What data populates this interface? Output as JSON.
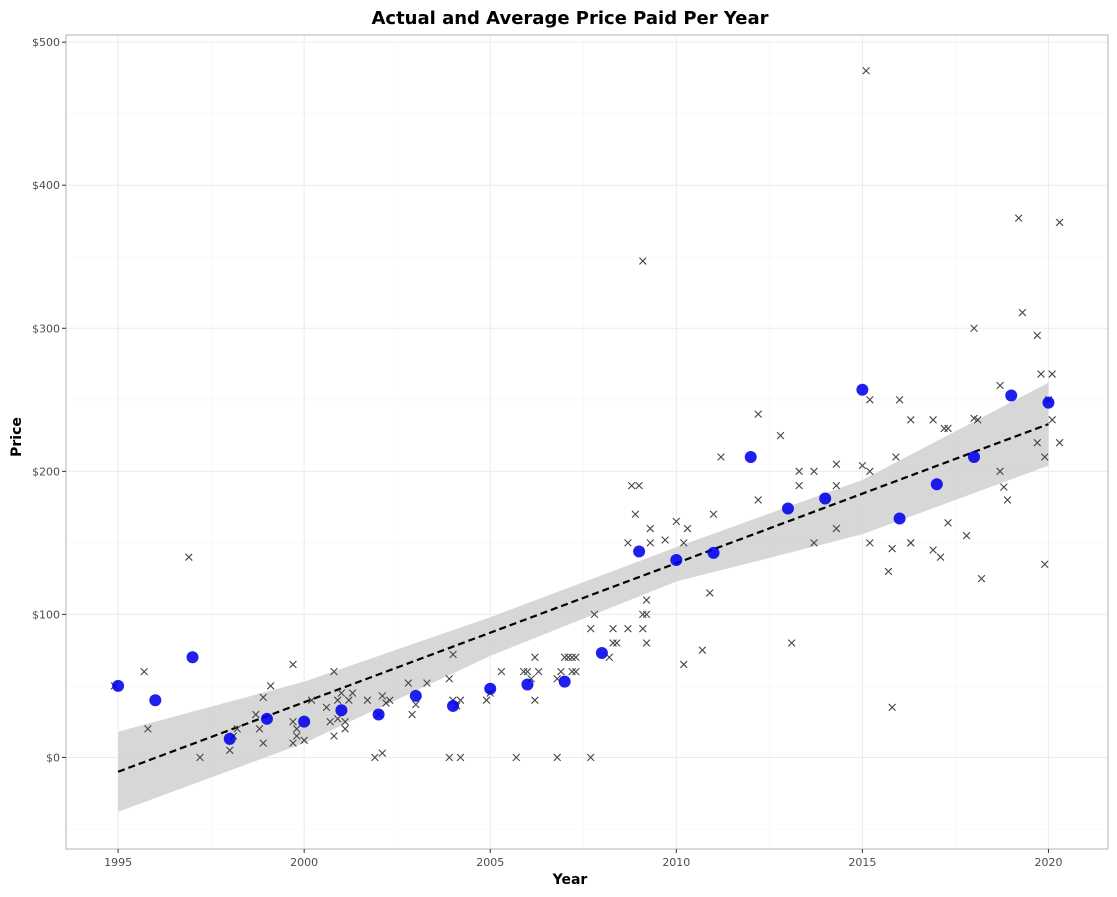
{
  "chart_data": {
    "type": "scatter",
    "title": "Actual and Average Price Paid Per Year",
    "xlabel": "Year",
    "ylabel": "Price",
    "xlim": [
      1993.6,
      2021.6
    ],
    "ylim": [
      -64,
      505
    ],
    "x_ticks": [
      {
        "value": 1995,
        "label": "1995"
      },
      {
        "value": 2000,
        "label": "2000"
      },
      {
        "value": 2005,
        "label": "2005"
      },
      {
        "value": 2010,
        "label": "2010"
      },
      {
        "value": 2015,
        "label": "2015"
      },
      {
        "value": 2020,
        "label": "2020"
      }
    ],
    "y_ticks": [
      {
        "value": 0,
        "label": "$0"
      },
      {
        "value": 100,
        "label": "$100"
      },
      {
        "value": 200,
        "label": "$200"
      },
      {
        "value": 300,
        "label": "$300"
      },
      {
        "value": 400,
        "label": "$400"
      },
      {
        "value": 500,
        "label": "$500"
      }
    ],
    "grid": true,
    "colors": {
      "points": "#444444",
      "average": "#0000ee",
      "trend": "#000000",
      "band": "#d3d3d3",
      "grid": "#ebebeb",
      "panel_border": "#b3b3b3"
    },
    "series": [
      {
        "kind": "actual",
        "marker": "x",
        "points": [
          [
            1994.9,
            50
          ],
          [
            1995.7,
            60
          ],
          [
            1995.8,
            20
          ],
          [
            1996.9,
            140
          ],
          [
            1997.2,
            0
          ],
          [
            1998,
            5
          ],
          [
            1998.1,
            15
          ],
          [
            1998.2,
            20
          ],
          [
            1998.7,
            30
          ],
          [
            1998.8,
            20
          ],
          [
            1998.9,
            10
          ],
          [
            1998.9,
            42
          ],
          [
            1999.1,
            50
          ],
          [
            1999.7,
            65
          ],
          [
            1999.7,
            10
          ],
          [
            1999.7,
            25
          ],
          [
            1999.8,
            20
          ],
          [
            1999.8,
            15
          ],
          [
            2000,
            12
          ],
          [
            2000.2,
            40
          ],
          [
            2000.6,
            35
          ],
          [
            2000.7,
            25
          ],
          [
            2000.8,
            60
          ],
          [
            2000.8,
            15
          ],
          [
            2000.9,
            40
          ],
          [
            2000.9,
            27
          ],
          [
            2001,
            45
          ],
          [
            2001.1,
            25
          ],
          [
            2001.1,
            20
          ],
          [
            2001.2,
            40
          ],
          [
            2001.3,
            45
          ],
          [
            2001.7,
            40
          ],
          [
            2001.9,
            0
          ],
          [
            2002,
            30
          ],
          [
            2002.1,
            3
          ],
          [
            2002.1,
            43
          ],
          [
            2002.2,
            38
          ],
          [
            2002.3,
            40
          ],
          [
            2002.8,
            52
          ],
          [
            2002.9,
            30
          ],
          [
            2003,
            37
          ],
          [
            2003.3,
            52
          ],
          [
            2003.9,
            55
          ],
          [
            2003.9,
            0
          ],
          [
            2004,
            40
          ],
          [
            2004,
            72
          ],
          [
            2004.1,
            36
          ],
          [
            2004.2,
            40
          ],
          [
            2004.2,
            0
          ],
          [
            2004.9,
            40
          ],
          [
            2005,
            45
          ],
          [
            2005.3,
            60
          ],
          [
            2005.7,
            0
          ],
          [
            2005.9,
            60
          ],
          [
            2006,
            60
          ],
          [
            2006.1,
            55
          ],
          [
            2006.2,
            70
          ],
          [
            2006.2,
            40
          ],
          [
            2006.3,
            60
          ],
          [
            2006.8,
            55
          ],
          [
            2006.8,
            0
          ],
          [
            2006.9,
            60
          ],
          [
            2007,
            70
          ],
          [
            2007.1,
            70
          ],
          [
            2007.2,
            60
          ],
          [
            2007.2,
            70
          ],
          [
            2007.3,
            70
          ],
          [
            2007.3,
            60
          ],
          [
            2007.7,
            90
          ],
          [
            2007.7,
            0
          ],
          [
            2007.8,
            100
          ],
          [
            2008.2,
            70
          ],
          [
            2008.3,
            80
          ],
          [
            2008.3,
            90
          ],
          [
            2008.4,
            80
          ],
          [
            2008.7,
            90
          ],
          [
            2008.7,
            150
          ],
          [
            2008.8,
            190
          ],
          [
            2008.9,
            170
          ],
          [
            2009,
            190
          ],
          [
            2009.1,
            347
          ],
          [
            2009.1,
            90
          ],
          [
            2009.1,
            100
          ],
          [
            2009.2,
            100
          ],
          [
            2009.2,
            80
          ],
          [
            2009.2,
            110
          ],
          [
            2009.3,
            160
          ],
          [
            2009.3,
            150
          ],
          [
            2009.7,
            152
          ],
          [
            2010,
            165
          ],
          [
            2010.2,
            65
          ],
          [
            2010.2,
            150
          ],
          [
            2010.3,
            160
          ],
          [
            2010.7,
            75
          ],
          [
            2010.9,
            115
          ],
          [
            2011,
            170
          ],
          [
            2011.2,
            210
          ],
          [
            2012.2,
            240
          ],
          [
            2012.2,
            180
          ],
          [
            2012.8,
            225
          ],
          [
            2013.1,
            80
          ],
          [
            2013.3,
            200
          ],
          [
            2013.3,
            190
          ],
          [
            2013.7,
            150
          ],
          [
            2013.7,
            200
          ],
          [
            2014.3,
            205
          ],
          [
            2014.3,
            190
          ],
          [
            2014.3,
            160
          ],
          [
            2015,
            204
          ],
          [
            2015.1,
            480
          ],
          [
            2015.2,
            250
          ],
          [
            2015.2,
            200
          ],
          [
            2015.2,
            150
          ],
          [
            2015.7,
            130
          ],
          [
            2015.8,
            35
          ],
          [
            2015.8,
            146
          ],
          [
            2015.9,
            210
          ],
          [
            2016,
            250
          ],
          [
            2016.3,
            236
          ],
          [
            2016.3,
            150
          ],
          [
            2016.3,
            150
          ],
          [
            2016.9,
            145
          ],
          [
            2016.9,
            236
          ],
          [
            2017.1,
            140
          ],
          [
            2017.2,
            230
          ],
          [
            2017.3,
            230
          ],
          [
            2017.3,
            164
          ],
          [
            2017.8,
            155
          ],
          [
            2018,
            237
          ],
          [
            2018,
            300
          ],
          [
            2018.1,
            236
          ],
          [
            2018.2,
            125
          ],
          [
            2018.7,
            260
          ],
          [
            2018.7,
            200
          ],
          [
            2018.8,
            189
          ],
          [
            2018.9,
            180
          ],
          [
            2019.2,
            377
          ],
          [
            2019.3,
            311
          ],
          [
            2019.7,
            295
          ],
          [
            2019.7,
            220
          ],
          [
            2019.8,
            268
          ],
          [
            2019.9,
            210
          ],
          [
            2019.9,
            135
          ],
          [
            2020,
            250
          ],
          [
            2020.1,
            236
          ],
          [
            2020.1,
            268
          ],
          [
            2020.3,
            374
          ],
          [
            2020.3,
            220
          ]
        ]
      },
      {
        "kind": "average",
        "marker": "circle",
        "points": [
          [
            1995,
            50
          ],
          [
            1996,
            40
          ],
          [
            1997,
            70
          ],
          [
            1998,
            13
          ],
          [
            1999,
            27
          ],
          [
            2000,
            25
          ],
          [
            2001,
            33
          ],
          [
            2002,
            30
          ],
          [
            2003,
            43
          ],
          [
            2004,
            36
          ],
          [
            2005,
            48
          ],
          [
            2006,
            51
          ],
          [
            2007,
            53
          ],
          [
            2008,
            73
          ],
          [
            2009,
            144
          ],
          [
            2010,
            138
          ],
          [
            2011,
            143
          ],
          [
            2012,
            210
          ],
          [
            2013,
            174
          ],
          [
            2014,
            181
          ],
          [
            2015,
            257
          ],
          [
            2016,
            167
          ],
          [
            2017,
            191
          ],
          [
            2018,
            210
          ],
          [
            2019,
            253
          ],
          [
            2020,
            248
          ]
        ]
      }
    ],
    "trend": {
      "kind": "linear",
      "x": [
        1995,
        2020
      ],
      "y": [
        -10,
        233
      ]
    },
    "band": {
      "x": [
        1995,
        2000,
        2005,
        2010,
        2015,
        2020
      ],
      "upper": [
        18,
        53,
        98,
        147,
        194,
        262
      ],
      "lower": [
        -38,
        10,
        71,
        123,
        156,
        204
      ]
    }
  }
}
